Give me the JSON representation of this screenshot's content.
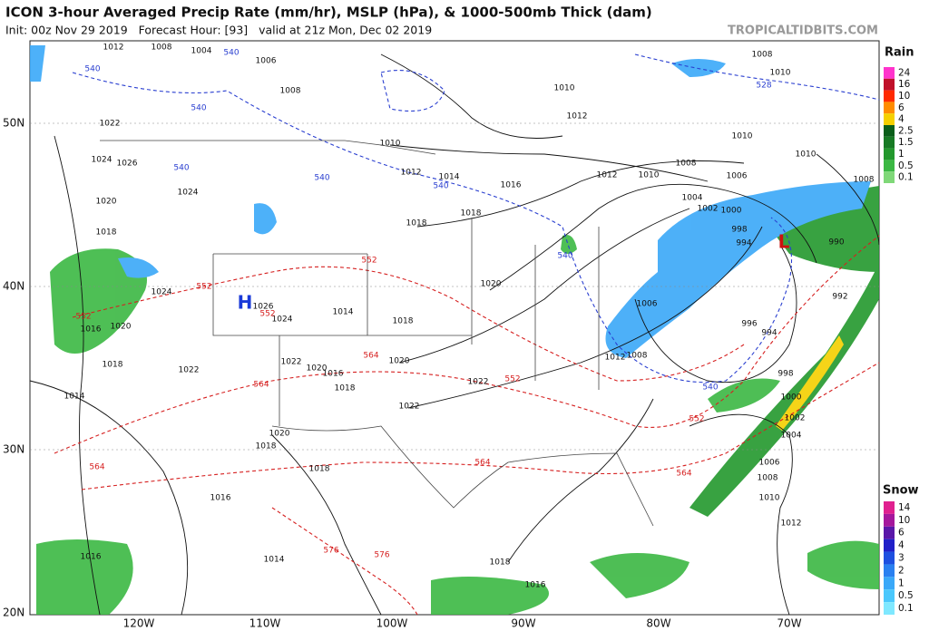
{
  "header": {
    "title": "ICON 3-hour Averaged Precip Rate (mm/hr), MSLP (hPa), & 1000-500mb Thick (dam)",
    "subtitle": "Init: 00z Nov 29 2019   Forecast Hour: [93]   valid at 21z Mon, Dec 02 2019",
    "brand": "TROPICALTIDBITS.COM"
  },
  "map": {
    "lat_labels": [
      "50N",
      "40N",
      "30N",
      "20N"
    ],
    "lon_labels": [
      "120W",
      "110W",
      "100W",
      "90W",
      "80W",
      "70W"
    ],
    "pressure_centers": [
      "H",
      "L"
    ],
    "isobar_labels": [
      "1012",
      "1008",
      "1004",
      "1006",
      "1008",
      "1010",
      "1012",
      "1014",
      "1016",
      "1018",
      "1018",
      "1020",
      "1018",
      "1020",
      "1022",
      "1022",
      "1020",
      "1018",
      "1018",
      "1016",
      "1014",
      "1016",
      "1014",
      "1022",
      "1018",
      "1010",
      "1012",
      "1012",
      "1010",
      "1008",
      "1006",
      "1004",
      "1002",
      "1000",
      "998",
      "994",
      "1006",
      "1008",
      "1012",
      "996",
      "994",
      "998",
      "1000",
      "1002",
      "1004",
      "1006",
      "1008",
      "1010",
      "1012",
      "1018",
      "1016",
      "1010",
      "1008",
      "990",
      "992",
      "1008",
      "1010",
      "1010",
      "1024",
      "1026",
      "1024",
      "1022",
      "1020",
      "1018",
      "1016",
      "1020",
      "1024",
      "1026",
      "1024",
      "1014",
      "1018",
      "1016",
      "1020",
      "1022"
    ],
    "thickness_labels": [
      "552",
      "552",
      "552",
      "564",
      "564",
      "552",
      "564",
      "564",
      "552",
      "564",
      "576",
      "576",
      "552"
    ],
    "cold_thickness_labels": [
      "540",
      "540",
      "540",
      "540",
      "540",
      "540",
      "540",
      "540",
      "528"
    ]
  },
  "legend": {
    "rain": {
      "title": "Rain",
      "ticks": [
        24,
        16,
        10,
        6,
        4,
        2.5,
        1.5,
        1,
        0.5,
        0.1
      ],
      "colors": [
        "#ff33cc",
        "#c0102a",
        "#ff2a00",
        "#ff8c00",
        "#f5d000",
        "#0a5e1a",
        "#177a24",
        "#23982d",
        "#3bb843",
        "#7fd878"
      ]
    },
    "snow": {
      "title": "Snow",
      "ticks": [
        14,
        10,
        6,
        4,
        3,
        2,
        1,
        0.5,
        0.1
      ],
      "colors": [
        "#e0208f",
        "#a5179c",
        "#5a17a8",
        "#2020c8",
        "#1e50e0",
        "#2a80f0",
        "#3aa8f8",
        "#4ac8fc",
        "#7fe8ff"
      ]
    }
  }
}
